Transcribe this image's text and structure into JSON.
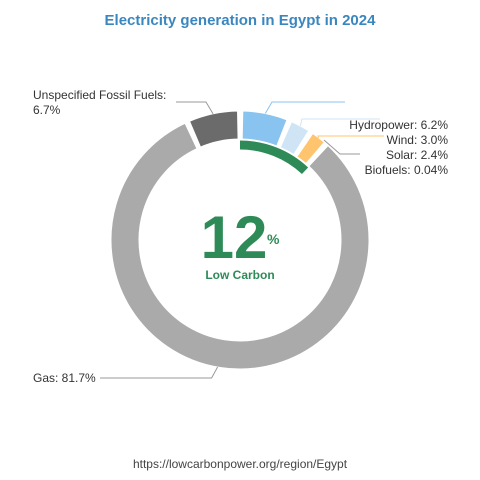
{
  "chart_data": {
    "type": "pie",
    "title": "Electricity generation in Egypt in 2024",
    "slices": [
      {
        "name": "Gas",
        "label": "Gas: 81.7%",
        "value": 81.7,
        "color": "#aaaaaa"
      },
      {
        "name": "Unspecified Fossil Fuels",
        "label_line1": "Unspecified Fossil Fuels:",
        "label_line2": "6.7%",
        "value": 6.7,
        "color": "#6b6b6b"
      },
      {
        "name": "Hydropower",
        "label": "Hydropower: 6.2%",
        "value": 6.2,
        "color": "#89c3f0"
      },
      {
        "name": "Wind",
        "label": "Wind: 3.0%",
        "value": 3.0,
        "color": "#cfe5f6"
      },
      {
        "name": "Solar",
        "label": "Solar: 2.4%",
        "value": 2.4,
        "color": "#ffc46e"
      },
      {
        "name": "Biofuels",
        "label": "Biofuels: 0.04%",
        "value": 0.04,
        "color": "#3a8a5a"
      }
    ],
    "low_carbon_percent": 12
  },
  "center": {
    "value": "12",
    "unit": "%",
    "caption": "Low Carbon"
  },
  "footer": {
    "source_url": "https://lowcarbonpower.org/region/Egypt"
  },
  "colors": {
    "title": "#3a87c0",
    "low_carbon": "#2e8b57",
    "leader": "#999999"
  }
}
